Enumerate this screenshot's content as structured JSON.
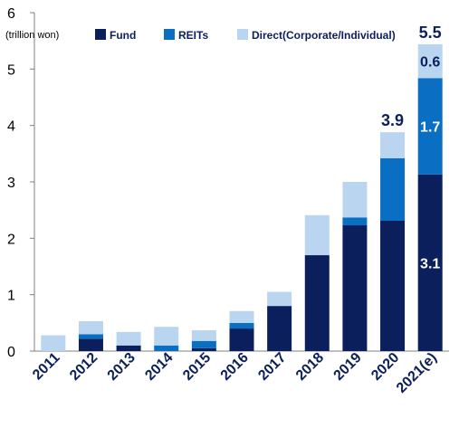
{
  "chart_data": {
    "type": "stacked-bar",
    "ylabel": "(trillion won)",
    "ylim": [
      0,
      6
    ],
    "yticks": [
      0,
      1,
      2,
      3,
      4,
      5,
      6
    ],
    "grid": false,
    "legend_position": "top",
    "categories": [
      "2011",
      "2012",
      "2013",
      "2014",
      "2015",
      "2016",
      "2017",
      "2018",
      "2019",
      "2020",
      "2021(e)"
    ],
    "series": [
      {
        "name": "Fund",
        "color": "#0b1f5c",
        "values": [
          0.0,
          0.22,
          0.1,
          0.0,
          0.05,
          0.4,
          0.8,
          1.7,
          2.23,
          2.31,
          3.13
        ]
      },
      {
        "name": "REITs",
        "color": "#0a6fc2",
        "values": [
          0.0,
          0.08,
          0.0,
          0.1,
          0.13,
          0.1,
          0.0,
          0.0,
          0.14,
          1.11,
          1.71
        ]
      },
      {
        "name": "Direct(Corporate/Individual)",
        "color": "#b9d5ef",
        "values": [
          0.28,
          0.23,
          0.24,
          0.33,
          0.19,
          0.21,
          0.25,
          0.71,
          0.63,
          0.46,
          0.6
        ]
      }
    ],
    "annotations": [
      {
        "category": "2020",
        "position": "top",
        "text": "3.9",
        "color": "#0b1f5c"
      },
      {
        "category": "2021(e)",
        "position": "top",
        "text": "5.5",
        "color": "#0b1f5c"
      },
      {
        "category": "2021(e)",
        "series": "Direct(Corporate/Individual)",
        "text": "0.6",
        "color": "#0b1f5c"
      },
      {
        "category": "2021(e)",
        "series": "REITs",
        "text": "1.7",
        "color": "#ffffff"
      },
      {
        "category": "2021(e)",
        "series": "Fund",
        "text": "3.1",
        "color": "#ffffff"
      }
    ]
  }
}
